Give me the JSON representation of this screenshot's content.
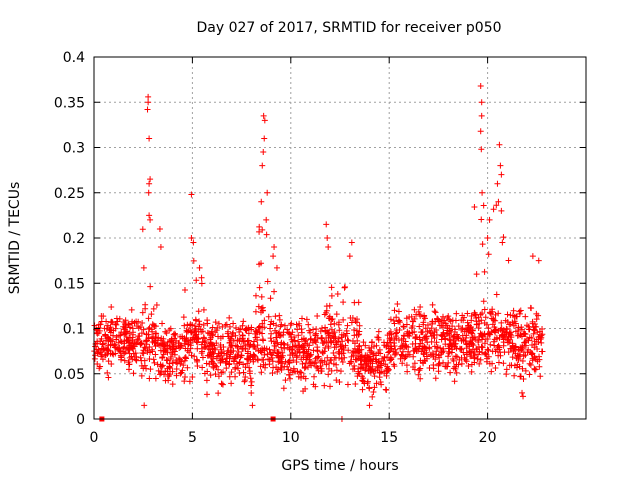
{
  "chart_data": {
    "type": "scatter",
    "title": "Day 027 of 2017, SRMTID for receiver p050",
    "xlabel": "GPS time / hours",
    "ylabel": "SRMTID / TECUs",
    "xlim": [
      0,
      25
    ],
    "ylim": [
      0,
      0.4
    ],
    "x_ticks": [
      0,
      5,
      10,
      15,
      20
    ],
    "x_tick_labels": [
      "0",
      "5",
      "10",
      "15",
      "20"
    ],
    "y_ticks": [
      0,
      0.05,
      0.1,
      0.15,
      0.2,
      0.25,
      0.3,
      0.35,
      0.4
    ],
    "y_tick_labels": [
      "0",
      "0.05",
      "0.1",
      "0.15",
      "0.2",
      "0.25",
      "0.3",
      "0.35",
      "0.4"
    ],
    "grid": true,
    "marker": "+",
    "color": "#ff0000",
    "series": [
      {
        "name": "SRMTID",
        "bands": [
          {
            "x0": 0.0,
            "x1": 2.4,
            "lo": 0.04,
            "hi": 0.13
          },
          {
            "x0": 2.4,
            "x1": 3.2,
            "lo": 0.03,
            "hi": 0.36
          },
          {
            "x0": 3.2,
            "x1": 4.5,
            "lo": 0.025,
            "hi": 0.12
          },
          {
            "x0": 4.5,
            "x1": 5.6,
            "lo": 0.03,
            "hi": 0.25
          },
          {
            "x0": 5.6,
            "x1": 8.2,
            "lo": 0.02,
            "hi": 0.13
          },
          {
            "x0": 8.2,
            "x1": 9.3,
            "lo": 0.03,
            "hi": 0.335
          },
          {
            "x0": 9.3,
            "x1": 11.5,
            "lo": 0.02,
            "hi": 0.13
          },
          {
            "x0": 11.5,
            "x1": 13.5,
            "lo": 0.02,
            "hi": 0.215
          },
          {
            "x0": 13.5,
            "x1": 15.0,
            "lo": 0.015,
            "hi": 0.11
          },
          {
            "x0": 15.0,
            "x1": 19.3,
            "lo": 0.03,
            "hi": 0.15
          },
          {
            "x0": 19.3,
            "x1": 21.2,
            "lo": 0.04,
            "hi": 0.368
          },
          {
            "x0": 21.2,
            "x1": 22.8,
            "lo": 0.025,
            "hi": 0.18
          }
        ],
        "points": [
          {
            "x": 2.75,
            "y": 0.356
          },
          {
            "x": 2.75,
            "y": 0.35
          },
          {
            "x": 2.72,
            "y": 0.342
          },
          {
            "x": 2.8,
            "y": 0.31
          },
          {
            "x": 2.85,
            "y": 0.265
          },
          {
            "x": 2.8,
            "y": 0.26
          },
          {
            "x": 2.78,
            "y": 0.25
          },
          {
            "x": 2.8,
            "y": 0.225
          },
          {
            "x": 2.85,
            "y": 0.22
          },
          {
            "x": 3.35,
            "y": 0.21
          },
          {
            "x": 3.4,
            "y": 0.19
          },
          {
            "x": 4.95,
            "y": 0.248
          },
          {
            "x": 4.95,
            "y": 0.2
          },
          {
            "x": 5.05,
            "y": 0.195
          },
          {
            "x": 8.62,
            "y": 0.335
          },
          {
            "x": 8.68,
            "y": 0.33
          },
          {
            "x": 8.65,
            "y": 0.31
          },
          {
            "x": 8.6,
            "y": 0.295
          },
          {
            "x": 8.55,
            "y": 0.28
          },
          {
            "x": 8.8,
            "y": 0.25
          },
          {
            "x": 8.5,
            "y": 0.24
          },
          {
            "x": 8.75,
            "y": 0.22
          },
          {
            "x": 9.1,
            "y": 0.18
          },
          {
            "x": 9.15,
            "y": 0.19
          },
          {
            "x": 8.05,
            "y": 0.015
          },
          {
            "x": 11.8,
            "y": 0.215
          },
          {
            "x": 11.85,
            "y": 0.2
          },
          {
            "x": 11.9,
            "y": 0.19
          },
          {
            "x": 13.1,
            "y": 0.195
          },
          {
            "x": 13.0,
            "y": 0.18
          },
          {
            "x": 19.65,
            "y": 0.368
          },
          {
            "x": 19.7,
            "y": 0.35
          },
          {
            "x": 19.7,
            "y": 0.335
          },
          {
            "x": 19.65,
            "y": 0.318
          },
          {
            "x": 19.68,
            "y": 0.298
          },
          {
            "x": 19.72,
            "y": 0.25
          },
          {
            "x": 20.6,
            "y": 0.303
          },
          {
            "x": 20.65,
            "y": 0.28
          },
          {
            "x": 20.7,
            "y": 0.27
          },
          {
            "x": 20.5,
            "y": 0.26
          },
          {
            "x": 20.55,
            "y": 0.24
          },
          {
            "x": 20.7,
            "y": 0.23
          },
          {
            "x": 20.1,
            "y": 0.22
          },
          {
            "x": 20.0,
            "y": 0.2
          },
          {
            "x": 20.75,
            "y": 0.195
          },
          {
            "x": 22.3,
            "y": 0.18
          },
          {
            "x": 22.6,
            "y": 0.175
          },
          {
            "x": 2.55,
            "y": 0.015
          },
          {
            "x": 12.6,
            "y": 0.0
          },
          {
            "x": 14.0,
            "y": 0.015
          },
          {
            "x": 21.8,
            "y": 0.025
          }
        ]
      }
    ],
    "outliers_on_axis": [
      {
        "x": 0.4,
        "y": 0.0
      },
      {
        "x": 9.1,
        "y": 0.0
      }
    ]
  }
}
